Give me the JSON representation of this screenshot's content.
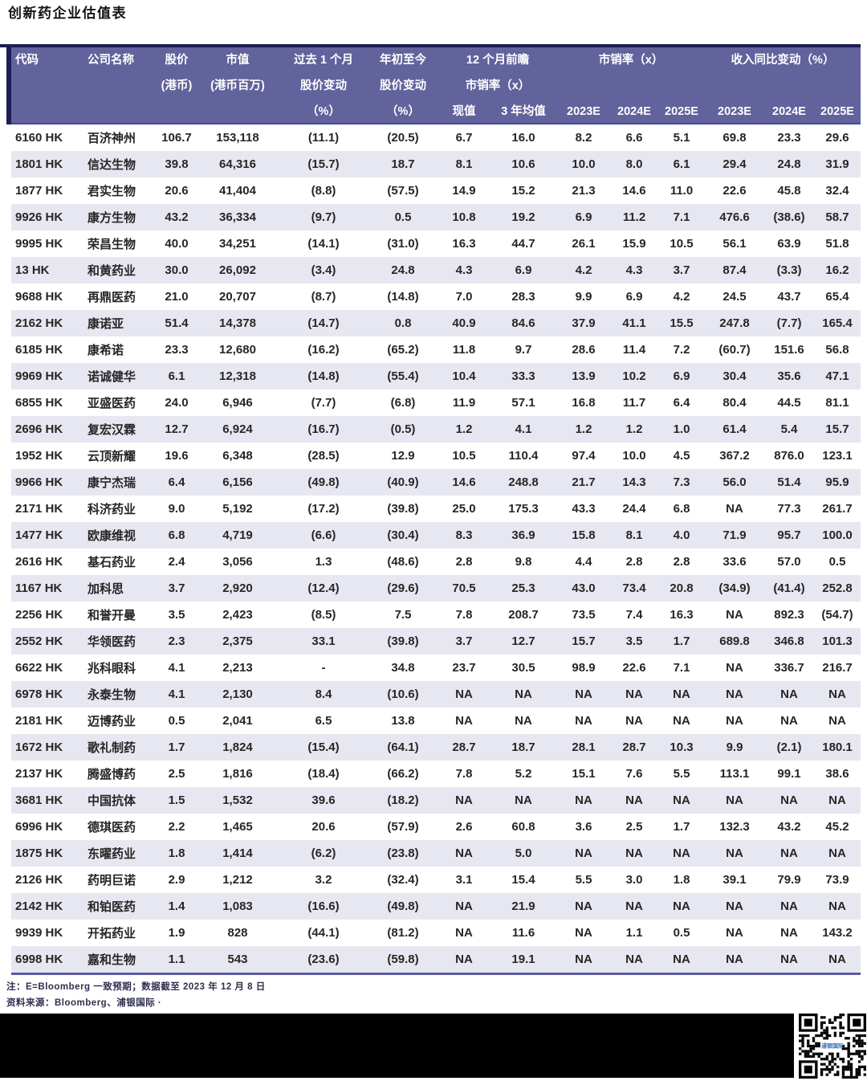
{
  "title": "创新药企业估值表",
  "colors": {
    "header_bg": "#62629c",
    "row_alt": "#e7e7f1",
    "rule_navy": "#1d1d55",
    "table_bottom_rule": "#5b5b9e",
    "text": "#262626",
    "qr_logo_blue": "#2f6db8"
  },
  "table": {
    "header": {
      "code": "代码",
      "company": "公司名称",
      "price_l1": "股价",
      "price_l2": "(港币)",
      "mcap_l1": "市值",
      "mcap_l2": "(港币百万)",
      "chg1m_l1": "过去 1 个月",
      "chg1m_l2": "股价变动",
      "chg1m_l3": "（%）",
      "ytd_l1": "年初至今",
      "ytd_l2": "股价变动",
      "ytd_l3": "（%）",
      "fwd_l1": "12 个月前瞻",
      "fwd_l2": "市销率（x）",
      "fwd_current": "现值",
      "fwd_avg3y": "3 年均值",
      "ps_group": "市销率（x）",
      "ps_2023": "2023E",
      "ps_2024": "2024E",
      "ps_2025": "2025E",
      "rev_group": "收入同比变动（%）",
      "rev_2023": "2023E",
      "rev_2024": "2024E",
      "rev_2025": "2025E"
    },
    "rows": [
      [
        "6160 HK",
        "百济神州",
        "106.7",
        "153,118",
        "(11.1)",
        "(20.5)",
        "6.7",
        "16.0",
        "8.2",
        "6.6",
        "5.1",
        "69.8",
        "23.3",
        "29.6"
      ],
      [
        "1801 HK",
        "信达生物",
        "39.8",
        "64,316",
        "(15.7)",
        "18.7",
        "8.1",
        "10.6",
        "10.0",
        "8.0",
        "6.1",
        "29.4",
        "24.8",
        "31.9"
      ],
      [
        "1877 HK",
        "君实生物",
        "20.6",
        "41,404",
        "(8.8)",
        "(57.5)",
        "14.9",
        "15.2",
        "21.3",
        "14.6",
        "11.0",
        "22.6",
        "45.8",
        "32.4"
      ],
      [
        "9926 HK",
        "康方生物",
        "43.2",
        "36,334",
        "(9.7)",
        "0.5",
        "10.8",
        "19.2",
        "6.9",
        "11.2",
        "7.1",
        "476.6",
        "(38.6)",
        "58.7"
      ],
      [
        "9995 HK",
        "荣昌生物",
        "40.0",
        "34,251",
        "(14.1)",
        "(31.0)",
        "16.3",
        "44.7",
        "26.1",
        "15.9",
        "10.5",
        "56.1",
        "63.9",
        "51.8"
      ],
      [
        "13 HK",
        "和黄药业",
        "30.0",
        "26,092",
        "(3.4)",
        "24.8",
        "4.3",
        "6.9",
        "4.2",
        "4.3",
        "3.7",
        "87.4",
        "(3.3)",
        "16.2"
      ],
      [
        "9688 HK",
        "再鼎医药",
        "21.0",
        "20,707",
        "(8.7)",
        "(14.8)",
        "7.0",
        "28.3",
        "9.9",
        "6.9",
        "4.2",
        "24.5",
        "43.7",
        "65.4"
      ],
      [
        "2162 HK",
        "康诺亚",
        "51.4",
        "14,378",
        "(14.7)",
        "0.8",
        "40.9",
        "84.6",
        "37.9",
        "41.1",
        "15.5",
        "247.8",
        "(7.7)",
        "165.4"
      ],
      [
        "6185 HK",
        "康希诺",
        "23.3",
        "12,680",
        "(16.2)",
        "(65.2)",
        "11.8",
        "9.7",
        "28.6",
        "11.4",
        "7.2",
        "(60.7)",
        "151.6",
        "56.8"
      ],
      [
        "9969 HK",
        "诺诚健华",
        "6.1",
        "12,318",
        "(14.8)",
        "(55.4)",
        "10.4",
        "33.3",
        "13.9",
        "10.2",
        "6.9",
        "30.4",
        "35.6",
        "47.1"
      ],
      [
        "6855 HK",
        "亚盛医药",
        "24.0",
        "6,946",
        "(7.7)",
        "(6.8)",
        "11.9",
        "57.1",
        "16.8",
        "11.7",
        "6.4",
        "80.4",
        "44.5",
        "81.1"
      ],
      [
        "2696 HK",
        "复宏汉霖",
        "12.7",
        "6,924",
        "(16.7)",
        "(0.5)",
        "1.2",
        "4.1",
        "1.2",
        "1.2",
        "1.0",
        "61.4",
        "5.4",
        "15.7"
      ],
      [
        "1952 HK",
        "云顶新耀",
        "19.6",
        "6,348",
        "(28.5)",
        "12.9",
        "10.5",
        "110.4",
        "97.4",
        "10.0",
        "4.5",
        "367.2",
        "876.0",
        "123.1"
      ],
      [
        "9966 HK",
        "康宁杰瑞",
        "6.4",
        "6,156",
        "(49.8)",
        "(40.9)",
        "14.6",
        "248.8",
        "21.7",
        "14.3",
        "7.3",
        "56.0",
        "51.4",
        "95.9"
      ],
      [
        "2171 HK",
        "科济药业",
        "9.0",
        "5,192",
        "(17.2)",
        "(39.8)",
        "25.0",
        "175.3",
        "43.3",
        "24.4",
        "6.8",
        "NA",
        "77.3",
        "261.7"
      ],
      [
        "1477 HK",
        "欧康维视",
        "6.8",
        "4,719",
        "(6.6)",
        "(30.4)",
        "8.3",
        "36.9",
        "15.8",
        "8.1",
        "4.0",
        "71.9",
        "95.7",
        "100.0"
      ],
      [
        "2616 HK",
        "基石药业",
        "2.4",
        "3,056",
        "1.3",
        "(48.6)",
        "2.8",
        "9.8",
        "4.4",
        "2.8",
        "2.8",
        "33.6",
        "57.0",
        "0.5"
      ],
      [
        "1167 HK",
        "加科思",
        "3.7",
        "2,920",
        "(12.4)",
        "(29.6)",
        "70.5",
        "25.3",
        "43.0",
        "73.4",
        "20.8",
        "(34.9)",
        "(41.4)",
        "252.8"
      ],
      [
        "2256 HK",
        "和誉开曼",
        "3.5",
        "2,423",
        "(8.5)",
        "7.5",
        "7.8",
        "208.7",
        "73.5",
        "7.4",
        "16.3",
        "NA",
        "892.3",
        "(54.7)"
      ],
      [
        "2552 HK",
        "华领医药",
        "2.3",
        "2,375",
        "33.1",
        "(39.8)",
        "3.7",
        "12.7",
        "15.7",
        "3.5",
        "1.7",
        "689.8",
        "346.8",
        "101.3"
      ],
      [
        "6622 HK",
        "兆科眼科",
        "4.1",
        "2,213",
        "-",
        "34.8",
        "23.7",
        "30.5",
        "98.9",
        "22.6",
        "7.1",
        "NA",
        "336.7",
        "216.7"
      ],
      [
        "6978 HK",
        "永泰生物",
        "4.1",
        "2,130",
        "8.4",
        "(10.6)",
        "NA",
        "NA",
        "NA",
        "NA",
        "NA",
        "NA",
        "NA",
        "NA"
      ],
      [
        "2181 HK",
        "迈博药业",
        "0.5",
        "2,041",
        "6.5",
        "13.8",
        "NA",
        "NA",
        "NA",
        "NA",
        "NA",
        "NA",
        "NA",
        "NA"
      ],
      [
        "1672 HK",
        "歌礼制药",
        "1.7",
        "1,824",
        "(15.4)",
        "(64.1)",
        "28.7",
        "18.7",
        "28.1",
        "28.7",
        "10.3",
        "9.9",
        "(2.1)",
        "180.1"
      ],
      [
        "2137 HK",
        "腾盛博药",
        "2.5",
        "1,816",
        "(18.4)",
        "(66.2)",
        "7.8",
        "5.2",
        "15.1",
        "7.6",
        "5.5",
        "113.1",
        "99.1",
        "38.6"
      ],
      [
        "3681 HK",
        "中国抗体",
        "1.5",
        "1,532",
        "39.6",
        "(18.2)",
        "NA",
        "NA",
        "NA",
        "NA",
        "NA",
        "NA",
        "NA",
        "NA"
      ],
      [
        "6996 HK",
        "德琪医药",
        "2.2",
        "1,465",
        "20.6",
        "(57.9)",
        "2.6",
        "60.8",
        "3.6",
        "2.5",
        "1.7",
        "132.3",
        "43.2",
        "45.2"
      ],
      [
        "1875 HK",
        "东曜药业",
        "1.8",
        "1,414",
        "(6.2)",
        "(23.8)",
        "NA",
        "5.0",
        "NA",
        "NA",
        "NA",
        "NA",
        "NA",
        "NA"
      ],
      [
        "2126 HK",
        "药明巨诺",
        "2.9",
        "1,212",
        "3.2",
        "(32.4)",
        "3.1",
        "15.4",
        "5.5",
        "3.0",
        "1.8",
        "39.1",
        "79.9",
        "73.9"
      ],
      [
        "2142 HK",
        "和铂医药",
        "1.4",
        "1,083",
        "(16.6)",
        "(49.8)",
        "NA",
        "21.9",
        "NA",
        "NA",
        "NA",
        "NA",
        "NA",
        "NA"
      ],
      [
        "9939 HK",
        "开拓药业",
        "1.9",
        "828",
        "(44.1)",
        "(81.2)",
        "NA",
        "11.6",
        "NA",
        "1.1",
        "0.5",
        "NA",
        "NA",
        "143.2"
      ],
      [
        "6998 HK",
        "嘉和生物",
        "1.1",
        "543",
        "(23.6)",
        "(59.8)",
        "NA",
        "19.1",
        "NA",
        "NA",
        "NA",
        "NA",
        "NA",
        "NA"
      ]
    ]
  },
  "notes": {
    "note1": "注：E=Bloomberg 一致预期；数据截至 2023 年 12 月 8 日",
    "note2": "资料来源：Bloomberg、浦银国际 ·"
  },
  "qr": {
    "logo_text": "浦银国际"
  }
}
